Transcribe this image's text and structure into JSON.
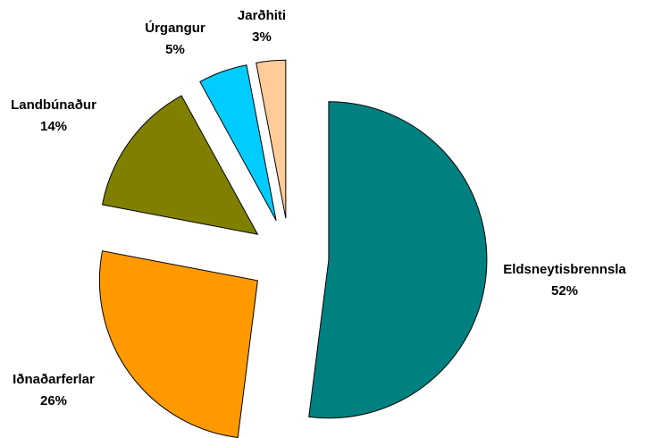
{
  "chart_data": {
    "type": "pie",
    "categories": [
      "Eldsneytisbrennsla",
      "Iðnaðarferlar",
      "Landbúnaður",
      "Úrgangur",
      "Jarðhiti"
    ],
    "values": [
      52,
      26,
      14,
      5,
      3
    ],
    "value_labels": [
      "52%",
      "26%",
      "14%",
      "5%",
      "3%"
    ],
    "colors": [
      "#008080",
      "#ff9900",
      "#808000",
      "#00ccff",
      "#ffcc99"
    ]
  }
}
